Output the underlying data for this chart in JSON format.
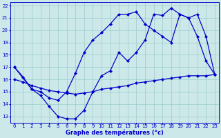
{
  "title": "Graphe des températures (°c)",
  "bg_color": "#cce8e8",
  "grid_color": "#99cccc",
  "line_color": "#0000cc",
  "x_min": 0,
  "x_max": 23,
  "y_min": 13,
  "y_max": 22,
  "series1_x": [
    0,
    1,
    2,
    3,
    4,
    5,
    6,
    7,
    8,
    9,
    10,
    11,
    12,
    13,
    14,
    15,
    16,
    17,
    18,
    19,
    20,
    21,
    22,
    23
  ],
  "series1_y": [
    17.0,
    16.2,
    15.2,
    14.7,
    13.8,
    13.0,
    12.8,
    12.8,
    13.5,
    15.0,
    16.3,
    16.7,
    18.2,
    17.5,
    18.2,
    19.2,
    21.3,
    21.2,
    21.8,
    21.3,
    21.0,
    19.5,
    17.5,
    16.4
  ],
  "series2_x": [
    0,
    2,
    3,
    4,
    5,
    6,
    7,
    8,
    9,
    10,
    11,
    12,
    13,
    14,
    15,
    16,
    17,
    18,
    19,
    20,
    21,
    22,
    23
  ],
  "series2_y": [
    17.0,
    15.2,
    15.0,
    14.5,
    14.3,
    15.0,
    16.5,
    18.2,
    19.2,
    19.8,
    20.5,
    21.3,
    21.3,
    21.5,
    20.5,
    20.0,
    19.5,
    19.0,
    21.3,
    21.0,
    21.3,
    19.5,
    16.4
  ],
  "series3_x": [
    0,
    1,
    2,
    3,
    4,
    5,
    6,
    7,
    8,
    9,
    10,
    11,
    12,
    13,
    14,
    15,
    16,
    17,
    18,
    19,
    20,
    21,
    22,
    23
  ],
  "series3_y": [
    16.0,
    15.8,
    15.5,
    15.3,
    15.1,
    15.0,
    14.9,
    14.8,
    14.9,
    15.0,
    15.2,
    15.3,
    15.4,
    15.5,
    15.7,
    15.8,
    15.9,
    16.0,
    16.1,
    16.2,
    16.3,
    16.3,
    16.3,
    16.4
  ]
}
